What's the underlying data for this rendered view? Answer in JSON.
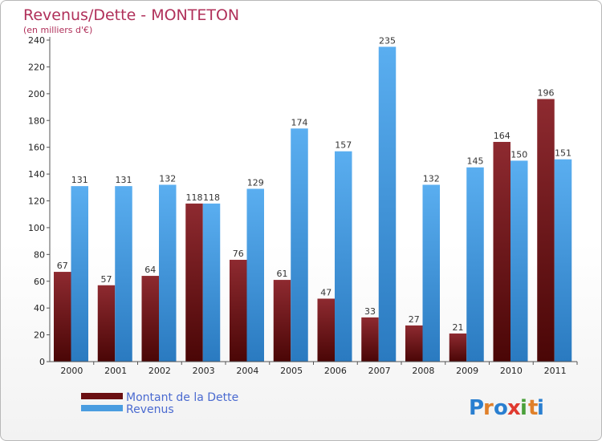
{
  "chart_data": {
    "type": "bar",
    "title": "Revenus/Dette - MONTETON",
    "subtitle": "(en milliers d'€)",
    "xlabel": "",
    "ylabel": "",
    "ylim": [
      0,
      240
    ],
    "ytick_step": 20,
    "grid": false,
    "legend_placement": "bottom-left",
    "categories": [
      "2000",
      "2001",
      "2002",
      "2003",
      "2004",
      "2005",
      "2006",
      "2007",
      "2008",
      "2009",
      "2010",
      "2011"
    ],
    "series": [
      {
        "name": "Montant de la Dette",
        "color": "#7a1a1e",
        "values": [
          67,
          57,
          64,
          118,
          76,
          61,
          47,
          33,
          27,
          21,
          164,
          196
        ]
      },
      {
        "name": "Revenus",
        "color": "#4a9de0",
        "values": [
          131,
          131,
          132,
          118,
          129,
          174,
          157,
          235,
          132,
          145,
          150,
          151
        ]
      }
    ]
  },
  "colors": {
    "title": "#b0305a",
    "legend_text": "#4a6ad0",
    "debt_bar": "#7a1a1e",
    "revenue_bar": "#4a9de0"
  },
  "logo": {
    "text": "Proxiti",
    "letter_colors": [
      "#2a7fd0",
      "#e0802a",
      "#2a7fd0",
      "#e03a30",
      "#4aa03a",
      "#e0802a",
      "#2a7fd0"
    ]
  }
}
